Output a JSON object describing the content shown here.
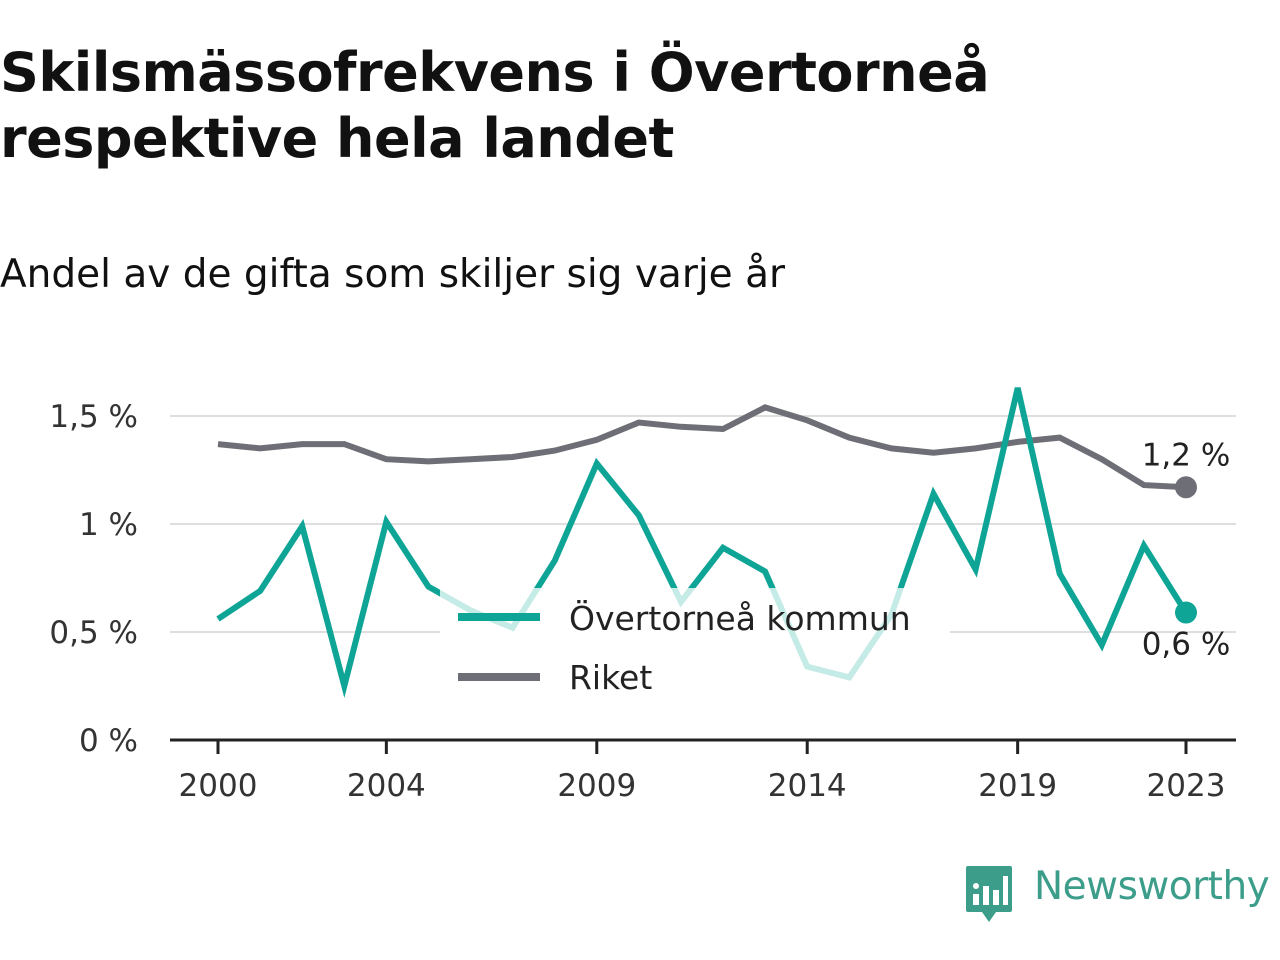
{
  "title": "Skilsmässofrekvens i Övertorneå respektive hela landet",
  "subtitle": "Andel av de gifta som skiljer sig varje år",
  "brand": {
    "name": "Newsworthy",
    "logo_icon": "newsworthy-bar-chart-logo",
    "color": "#3c9e8a"
  },
  "chart_data": {
    "type": "line",
    "x": [
      2000,
      2001,
      2002,
      2003,
      2004,
      2005,
      2006,
      2007,
      2008,
      2009,
      2010,
      2011,
      2012,
      2013,
      2014,
      2015,
      2016,
      2017,
      2018,
      2019,
      2020,
      2021,
      2022,
      2023
    ],
    "xticks": [
      "2000",
      "2004",
      "2009",
      "2014",
      "2019",
      "2023"
    ],
    "yticks": [
      {
        "value": 0,
        "label": "0 %"
      },
      {
        "value": 0.5,
        "label": "0,5 %"
      },
      {
        "value": 1,
        "label": "1 %"
      },
      {
        "value": 1.5,
        "label": "1,5 %"
      }
    ],
    "ylim": [
      0,
      1.6
    ],
    "xlabel": "",
    "ylabel": "",
    "grid": true,
    "legend_position": "center-bottom",
    "series": [
      {
        "name": "Övertorneå kommun",
        "color": "#0fa596",
        "color_faded": "#c5ebe6",
        "values": [
          0.56,
          0.69,
          0.99,
          0.25,
          1.01,
          0.71,
          0.6,
          0.52,
          0.83,
          1.28,
          1.04,
          0.64,
          0.89,
          0.78,
          0.34,
          0.29,
          0.58,
          1.14,
          0.79,
          1.63,
          0.77,
          0.44,
          0.9,
          0.59
        ],
        "end_label": "0,6 %"
      },
      {
        "name": "Riket",
        "color": "#6e6e76",
        "values": [
          1.37,
          1.35,
          1.37,
          1.37,
          1.3,
          1.29,
          1.3,
          1.31,
          1.34,
          1.39,
          1.47,
          1.45,
          1.44,
          1.54,
          1.48,
          1.4,
          1.35,
          1.33,
          1.35,
          1.38,
          1.4,
          1.3,
          1.18,
          1.17
        ],
        "end_label": "1,2 %"
      }
    ]
  }
}
